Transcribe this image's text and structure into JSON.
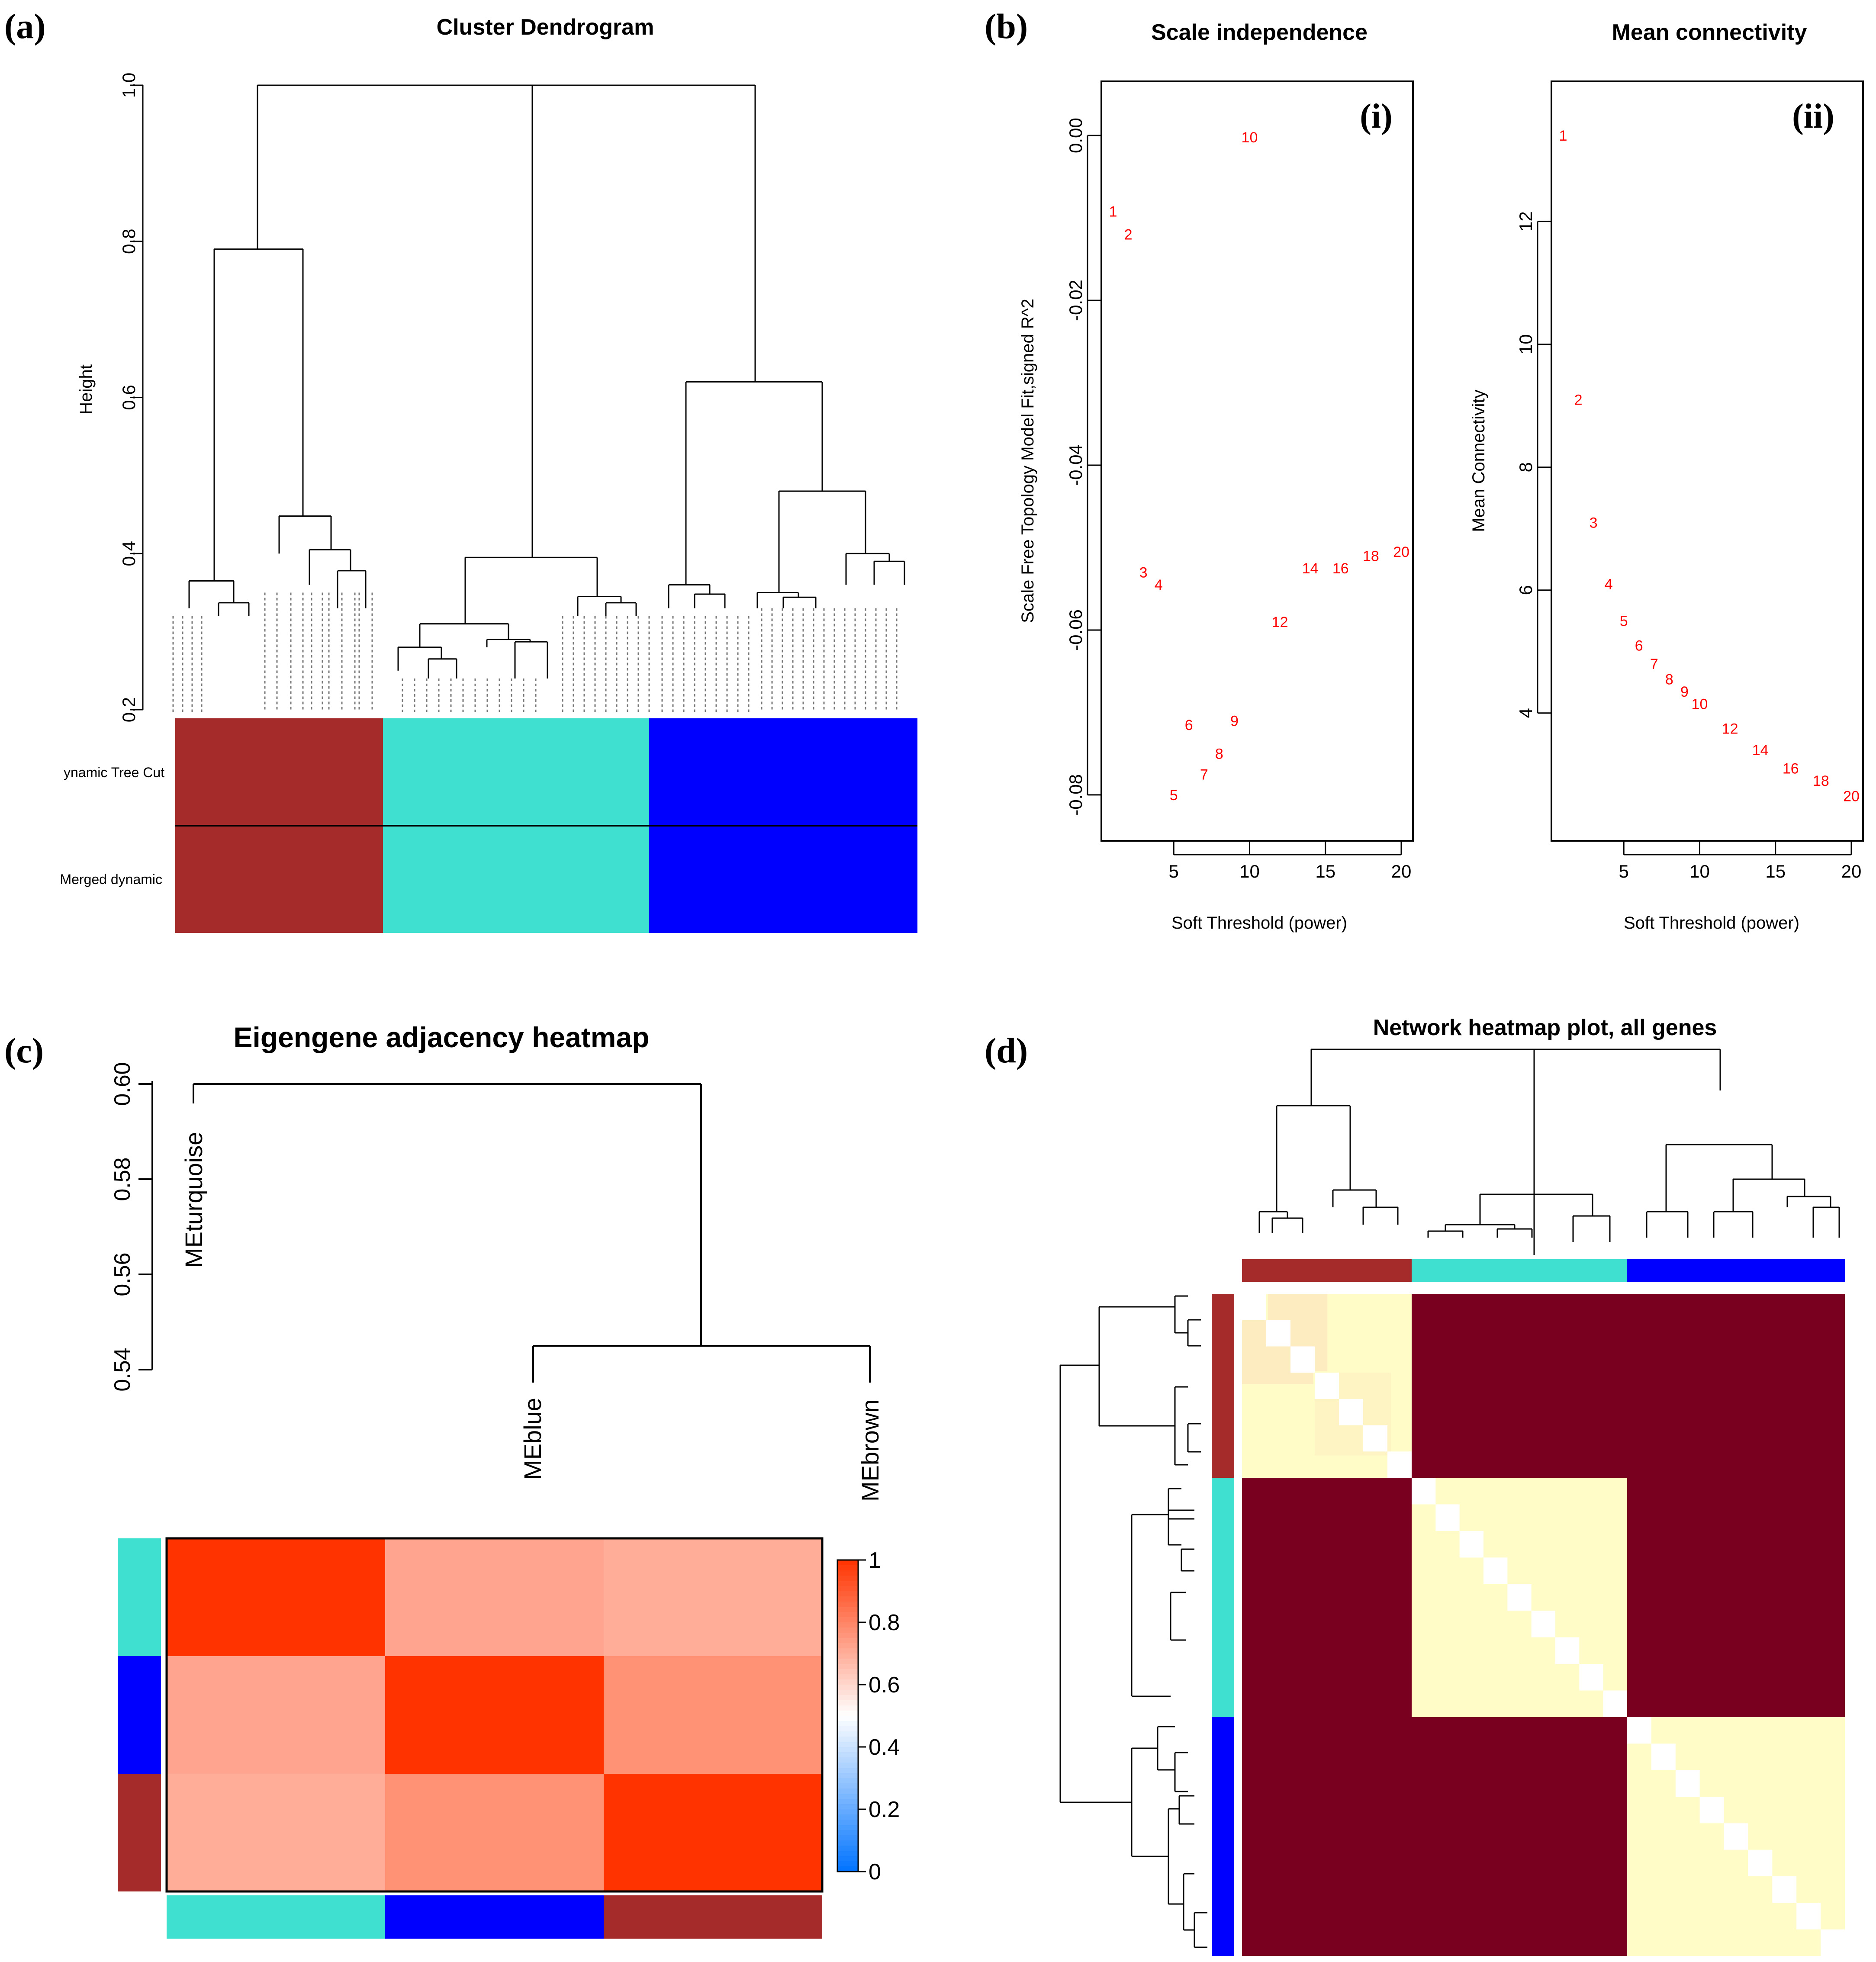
{
  "panels": {
    "a": {
      "label": "(a)",
      "title": "Cluster Dendrogram",
      "ylabel": "Height",
      "yticks": [
        "0.2",
        "0.4",
        "0.6",
        "0.8",
        "1.0"
      ],
      "row_labels": [
        "ynamic Tree Cut",
        "Merged dynamic"
      ]
    },
    "b": {
      "label": "(b)",
      "left_title": "Scale independence",
      "right_title": "Mean connectivity",
      "left_tag": "(i)",
      "right_tag": "(ii)",
      "left_ylabel": "Scale Free Topology Model Fit,signed R^2",
      "right_ylabel": "Mean Connectivity",
      "xlabel": "Soft Threshold (power)",
      "left_yticks": [
        "0.00",
        "-0.02",
        "-0.04",
        "-0.06",
        "-0.08"
      ],
      "right_yticks": [
        "12",
        "10",
        "8",
        "6",
        "4"
      ],
      "xticks": [
        "5",
        "10",
        "15",
        "20"
      ]
    },
    "c": {
      "label": "(c)",
      "title": "Eigengene adjacency heatmap",
      "yticks": [
        "0.60",
        "0.58",
        "0.56",
        "0.54"
      ],
      "leaves": [
        "MEturquoise",
        "MEblue",
        "MEbrown"
      ],
      "colorbar_ticks": [
        "1",
        "0.8",
        "0.6",
        "0.4",
        "0.2",
        "0"
      ]
    },
    "d": {
      "label": "(d)",
      "title": "Network heatmap plot, all genes"
    }
  },
  "colors": {
    "brown": "#a52a2a",
    "turquoise": "#40e0d0",
    "blue": "#0000ff",
    "tom_dark": "#7a0020",
    "tom_light": "#fffcc8",
    "tom_tan": "#fcecc0",
    "point": "#ff0000"
  },
  "chart_data": [
    {
      "id": "a",
      "type": "dendrogram",
      "title": "Cluster Dendrogram",
      "ylabel": "Height",
      "ylim": [
        0.2,
        1.0
      ],
      "modules": [
        {
          "name": "brown",
          "color": "#a52a2a",
          "leaves": 13
        },
        {
          "name": "turquoise",
          "color": "#40e0d0",
          "leaves": 17
        },
        {
          "name": "blue",
          "color": "#0000ff",
          "leaves": 17
        }
      ],
      "merge_heights": {
        "root": 1.0,
        "brown": 0.79,
        "turquoise": 0.395,
        "blue": 0.62,
        "blue_sub": 0.48
      }
    },
    {
      "id": "b-i",
      "type": "scatter",
      "title": "Scale independence",
      "xlabel": "Soft Threshold (power)",
      "ylabel": "Scale Free Topology Model Fit,signed R^2",
      "xlim": [
        1,
        20
      ],
      "ylim": [
        -0.082,
        0.003
      ],
      "points": [
        {
          "x": 1,
          "y": -0.0092,
          "label": "1"
        },
        {
          "x": 2,
          "y": -0.012,
          "label": "2"
        },
        {
          "x": 3,
          "y": -0.053,
          "label": "3"
        },
        {
          "x": 4,
          "y": -0.0545,
          "label": "4"
        },
        {
          "x": 5,
          "y": -0.08,
          "label": "5"
        },
        {
          "x": 6,
          "y": -0.0715,
          "label": "6"
        },
        {
          "x": 7,
          "y": -0.0775,
          "label": "7"
        },
        {
          "x": 8,
          "y": -0.075,
          "label": "8"
        },
        {
          "x": 9,
          "y": -0.071,
          "label": "9"
        },
        {
          "x": 10,
          "y": -0.0002,
          "label": "10"
        },
        {
          "x": 12,
          "y": -0.059,
          "label": "12"
        },
        {
          "x": 14,
          "y": -0.0525,
          "label": "14"
        },
        {
          "x": 16,
          "y": -0.0525,
          "label": "16"
        },
        {
          "x": 18,
          "y": -0.051,
          "label": "18"
        },
        {
          "x": 20,
          "y": -0.0505,
          "label": "20"
        }
      ]
    },
    {
      "id": "b-ii",
      "type": "scatter",
      "title": "Mean connectivity",
      "xlabel": "Soft Threshold (power)",
      "ylabel": "Mean Connectivity",
      "xlim": [
        1,
        20
      ],
      "ylim": [
        2.4,
        13.8
      ],
      "points": [
        {
          "x": 1,
          "y": 13.4,
          "label": "1"
        },
        {
          "x": 2,
          "y": 9.1,
          "label": "2"
        },
        {
          "x": 3,
          "y": 7.1,
          "label": "3"
        },
        {
          "x": 4,
          "y": 6.1,
          "label": "4"
        },
        {
          "x": 5,
          "y": 5.5,
          "label": "5"
        },
        {
          "x": 6,
          "y": 5.1,
          "label": "6"
        },
        {
          "x": 7,
          "y": 4.8,
          "label": "7"
        },
        {
          "x": 8,
          "y": 4.55,
          "label": "8"
        },
        {
          "x": 9,
          "y": 4.35,
          "label": "9"
        },
        {
          "x": 10,
          "y": 4.15,
          "label": "10"
        },
        {
          "x": 12,
          "y": 3.75,
          "label": "12"
        },
        {
          "x": 14,
          "y": 3.4,
          "label": "14"
        },
        {
          "x": 16,
          "y": 3.1,
          "label": "16"
        },
        {
          "x": 18,
          "y": 2.9,
          "label": "18"
        },
        {
          "x": 20,
          "y": 2.65,
          "label": "20"
        }
      ]
    },
    {
      "id": "c-dendro",
      "type": "dendrogram",
      "title": "Eigengene adjacency heatmap",
      "ylim": [
        0.54,
        0.605
      ],
      "leaves": [
        {
          "name": "MEturquoise",
          "height": 0.6
        },
        {
          "name": "MEblue",
          "height": 0.545
        },
        {
          "name": "MEbrown",
          "height": 0.545
        }
      ],
      "merges": [
        {
          "children": [
            "MEblue",
            "MEbrown"
          ],
          "height": 0.545
        },
        {
          "children": [
            "MEturquoise",
            "MEblue+MEbrown"
          ],
          "height": 0.6
        }
      ]
    },
    {
      "id": "c-heatmap",
      "type": "heatmap",
      "rows": [
        "MEturquoise",
        "MEblue",
        "MEbrown"
      ],
      "cols": [
        "MEturquoise",
        "MEblue",
        "MEbrown"
      ],
      "values": [
        [
          1.0,
          0.72,
          0.7
        ],
        [
          0.72,
          1.0,
          0.77
        ],
        [
          0.7,
          0.77,
          1.0
        ]
      ],
      "colorbar": {
        "min": 0,
        "max": 1,
        "ticks": [
          0,
          0.2,
          0.4,
          0.6,
          0.8,
          1
        ]
      }
    },
    {
      "id": "d",
      "type": "heatmap",
      "title": "Network heatmap plot, all genes",
      "modules": [
        {
          "name": "brown",
          "color": "#a52a2a",
          "size": 7
        },
        {
          "name": "turquoise",
          "color": "#40e0d0",
          "size": 9
        },
        {
          "name": "blue",
          "color": "#0000ff",
          "size": 9
        }
      ],
      "within_module": "light",
      "between_module": "dark"
    }
  ]
}
